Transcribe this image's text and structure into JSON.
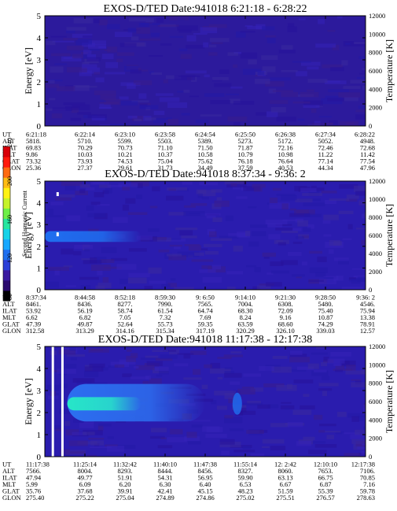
{
  "colorbar": {
    "label": "Second Harmonic Current",
    "ticks": [
      "80",
      "120",
      "160",
      "200",
      "240"
    ],
    "colors": [
      "#000000",
      "#2b0a6e",
      "#3a1aa0",
      "#2c3fd8",
      "#1f6ff0",
      "#18a8ff",
      "#16d2e8",
      "#27e6a0",
      "#6ef048",
      "#c6f32a",
      "#fff214",
      "#ffbd14",
      "#ff6a10",
      "#ff1a0c",
      "#d8000a"
    ]
  },
  "chart_data": [
    {
      "type": "heatmap",
      "title": "EXOS-D/TED   Date:941018   6:21:18 - 6:28:22",
      "ylabel": "Energy [eV]",
      "ylabel_right": "Temperature [K]",
      "ylim": [
        0,
        5
      ],
      "ylim_right": [
        0,
        12000
      ],
      "yticks": [
        "0",
        "1",
        "2",
        "3",
        "4",
        "5"
      ],
      "yticks_right": [
        "0",
        "2000",
        "4000",
        "6000",
        "8000",
        "10000",
        "12000"
      ],
      "background_color": "#2c1a9c",
      "ephemeris": {
        "row_labels": [
          "UT",
          "ALT",
          "ILAT",
          "MLT",
          "GLAT",
          "GLON"
        ],
        "columns": [
          [
            "6:21:18",
            "5818.",
            "69.83",
            "9.86",
            "73.32",
            "25.36"
          ],
          [
            "6:22:14",
            "5710.",
            "70.29",
            "10.03",
            "73.93",
            "27.37"
          ],
          [
            "6:23:10",
            "5599.",
            "70.73",
            "10.21",
            "74.53",
            "29.61"
          ],
          [
            "6:23:58",
            "5503.",
            "71.10",
            "10.37",
            "75.04",
            "31.73"
          ],
          [
            "6:24:54",
            "5389.",
            "71.50",
            "10.58",
            "75.62",
            "34.49"
          ],
          [
            "6:25:50",
            "5273.",
            "71.87",
            "10.79",
            "76.18",
            "37.59"
          ],
          [
            "6:26:38",
            "5172.",
            "72.16",
            "10.98",
            "76.64",
            "40.53"
          ],
          [
            "6:27:34",
            "5052.",
            "72.46",
            "11.22",
            "77.14",
            "44.34"
          ],
          [
            "6:28:22",
            "4948.",
            "72.68",
            "11.42",
            "77.54",
            "47.96"
          ]
        ]
      }
    },
    {
      "type": "heatmap",
      "title": "EXOS-D/TED   Date:941018   8:37:34 - 9:36: 2",
      "ylabel": "Energy [eV]",
      "ylabel_right": "Temperature [K]",
      "ylim": [
        0,
        5
      ],
      "ylim_right": [
        0,
        12000
      ],
      "yticks": [
        "0",
        "1",
        "2",
        "3",
        "4",
        "5"
      ],
      "yticks_right": [
        "0",
        "2000",
        "4000",
        "6000",
        "8000",
        "10000",
        "12000"
      ],
      "background_color": "#2a1cae",
      "features": [
        {
          "kind": "band",
          "x_frac": [
            0.0,
            0.3
          ],
          "energy_range": [
            2.2,
            2.7
          ],
          "color": "#1f6ff0"
        },
        {
          "kind": "marker",
          "x_frac": 0.04,
          "energy": 4.4,
          "color": "#ffffff"
        },
        {
          "kind": "marker",
          "x_frac": 0.04,
          "energy": 2.55,
          "color": "#ffffff"
        }
      ],
      "ephemeris": {
        "row_labels": [
          "UT",
          "ALT",
          "ILAT",
          "MLT",
          "GLAT",
          "GLON"
        ],
        "columns": [
          [
            "8:37:34",
            "8461.",
            "53.92",
            "6.62",
            "47.39",
            "312.58"
          ],
          [
            "8:44:58",
            "8436.",
            "56.19",
            "6.82",
            "49.87",
            "313.29"
          ],
          [
            "8:52:18",
            "8277.",
            "58.74",
            "7.05",
            "52.64",
            "314.16"
          ],
          [
            "8:59:30",
            "7990.",
            "61.54",
            "7.32",
            "55.73",
            "315.34"
          ],
          [
            "9: 6:50",
            "7565.",
            "64.74",
            "7.69",
            "59.35",
            "317.19"
          ],
          [
            "9:14:10",
            "7004.",
            "68.30",
            "8.24",
            "63.59",
            "320.29"
          ],
          [
            "9:21:30",
            "6308.",
            "72.09",
            "9.16",
            "68.60",
            "326.10"
          ],
          [
            "9:28:50",
            "5480.",
            "75.40",
            "10.87",
            "74.29",
            "339.03"
          ],
          [
            "9:36: 2",
            "4546.",
            "75.94",
            "13.38",
            "78.91",
            "12.57"
          ]
        ]
      }
    },
    {
      "type": "heatmap",
      "title": "EXOS-D/TED   Date:941018   11:17:38 - 12:17:38",
      "ylabel": "Energy [eV]",
      "ylabel_right": "Temperature [K]",
      "ylim": [
        0,
        5
      ],
      "ylim_right": [
        0,
        12000
      ],
      "yticks": [
        "0",
        "1",
        "2",
        "3",
        "4",
        "5"
      ],
      "yticks_right": [
        "0",
        "2000",
        "4000",
        "6000",
        "8000",
        "10000",
        "12000"
      ],
      "background_color": "#2a1cae",
      "features": [
        {
          "kind": "band",
          "x_frac": [
            0.07,
            0.5
          ],
          "energy_range": [
            1.6,
            3.3
          ],
          "color": "#2c6ff0"
        },
        {
          "kind": "core",
          "x_frac": [
            0.07,
            0.3
          ],
          "energy_range": [
            2.1,
            2.7
          ],
          "color": "#27e6c8"
        },
        {
          "kind": "blob",
          "x_frac": 0.6,
          "energy": 2.4,
          "color": "#1f6ff0"
        },
        {
          "kind": "gap",
          "x_frac": 0.025,
          "color": "#ffffff"
        },
        {
          "kind": "gap",
          "x_frac": 0.055,
          "color": "#ffffff"
        }
      ],
      "ephemeris": {
        "row_labels": [
          "UT",
          "ALT",
          "ILAT",
          "MLT",
          "GLAT",
          "GLON"
        ],
        "columns": [
          [
            "11:17:38",
            "7566.",
            "47.94",
            "5.99",
            "35.76",
            "275.40"
          ],
          [
            "11:25:14",
            "8004.",
            "49.77",
            "6.09",
            "37.68",
            "275.22"
          ],
          [
            "11:32:42",
            "8293.",
            "51.91",
            "6.20",
            "39.91",
            "275.04"
          ],
          [
            "11:40:10",
            "8444.",
            "54.31",
            "6.30",
            "42.41",
            "274.89"
          ],
          [
            "11:47:38",
            "8456.",
            "56.95",
            "6.40",
            "45.15",
            "274.86"
          ],
          [
            "11:55:14",
            "8327.",
            "59.90",
            "6.53",
            "48.23",
            "275.02"
          ],
          [
            "12: 2:42",
            "8060.",
            "63.13",
            "6.67",
            "51.59",
            "275.51"
          ],
          [
            "12:10:10",
            "7653.",
            "66.75",
            "6.87",
            "55.39",
            "276.57"
          ],
          [
            "12:17:38",
            "7106.",
            "70.85",
            "7.16",
            "59.78",
            "278.63"
          ]
        ]
      }
    }
  ]
}
